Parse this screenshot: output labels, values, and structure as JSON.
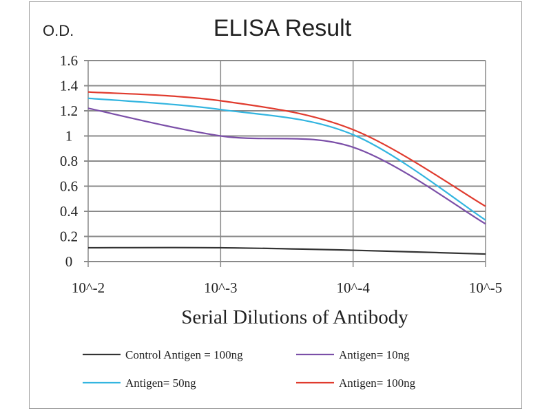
{
  "chart_data": {
    "type": "line",
    "title": "ELISA Result",
    "ylabel": "O.D.",
    "xlabel": "Serial  Dilutions  of Antibody",
    "categories": [
      "10^-2",
      "10^-3",
      "10^-4",
      "10^-5"
    ],
    "ylim": [
      0,
      1.6
    ],
    "yticks": [
      "0",
      "0.2",
      "0.4",
      "0.6",
      "0.8",
      "1",
      "1.2",
      "1.4",
      "1.6"
    ],
    "grid": true,
    "legend_placement": "bottom",
    "series": [
      {
        "name": "Control Antigen = 100ng",
        "color": "#333333",
        "values": [
          0.11,
          0.11,
          0.09,
          0.06
        ]
      },
      {
        "name": "Antigen= 10ng",
        "color": "#7b4fa8",
        "values": [
          1.22,
          1.0,
          0.91,
          0.3
        ]
      },
      {
        "name": "Antigen= 50ng",
        "color": "#33b5e0",
        "values": [
          1.3,
          1.21,
          1.01,
          0.33
        ]
      },
      {
        "name": "Antigen= 100ng",
        "color": "#e03b2e",
        "values": [
          1.35,
          1.28,
          1.05,
          0.44
        ]
      }
    ]
  }
}
